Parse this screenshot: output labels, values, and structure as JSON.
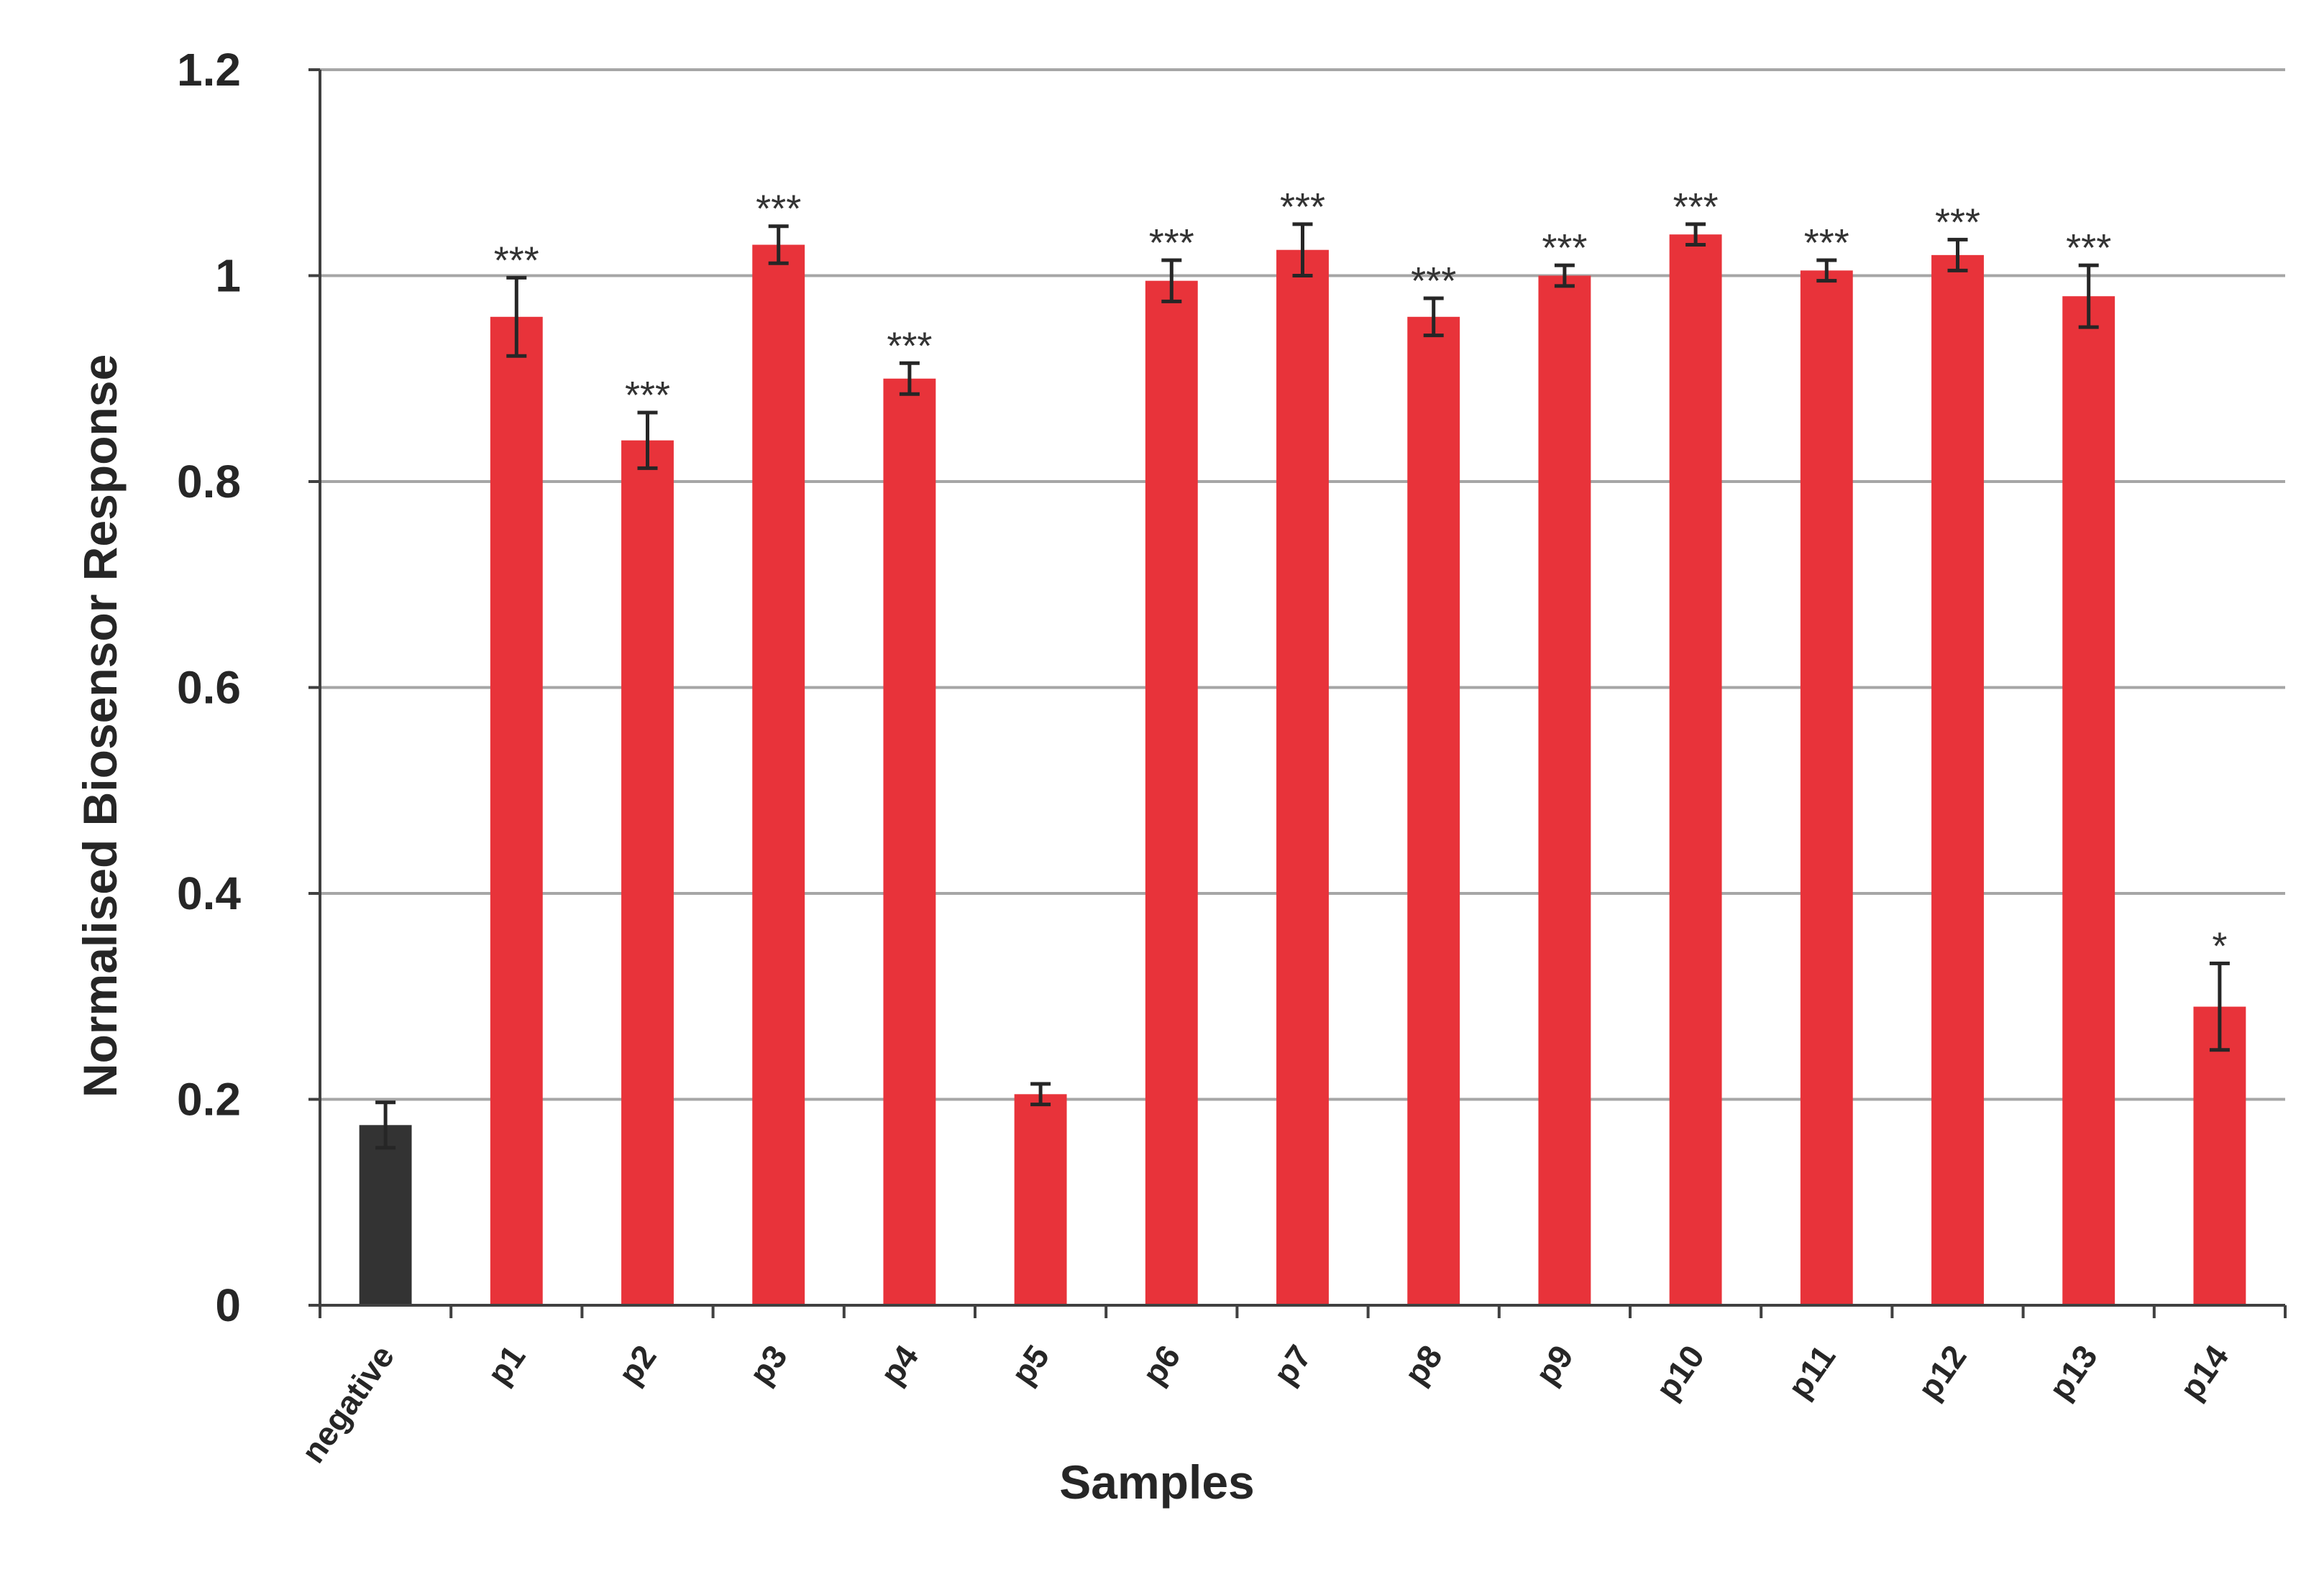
{
  "chart_data": {
    "type": "bar",
    "title": "",
    "xlabel": "Samples",
    "ylabel": "Normalised Biosensor Response",
    "ylim": [
      0,
      1.2
    ],
    "yticks": [
      "0",
      "0.2",
      "0.4",
      "0.6",
      "0.8",
      "1",
      "1.2"
    ],
    "grid": true,
    "legend": "none",
    "categories": [
      "negative",
      "p1",
      "p2",
      "p3",
      "p4",
      "p5",
      "p6",
      "p7",
      "p8",
      "p9",
      "p10",
      "p11",
      "p12",
      "p13",
      "p14"
    ],
    "values": [
      0.175,
      0.96,
      0.84,
      1.03,
      0.9,
      0.205,
      0.995,
      1.025,
      0.96,
      1.0,
      1.04,
      1.005,
      1.02,
      0.98,
      0.29
    ],
    "errors": [
      0.022,
      0.038,
      0.027,
      0.018,
      0.015,
      0.01,
      0.02,
      0.025,
      0.018,
      0.01,
      0.01,
      0.01,
      0.015,
      0.03,
      0.042
    ],
    "significance": [
      "",
      "***",
      "***",
      "***",
      "***",
      "",
      "***",
      "***",
      "***",
      "***",
      "***",
      "***",
      "***",
      "***",
      "*"
    ],
    "colors": {
      "negative": "#333333",
      "sample": "#e8333a",
      "grid": "#a6a6a6",
      "axis": "#404040",
      "error": "#262626"
    }
  }
}
